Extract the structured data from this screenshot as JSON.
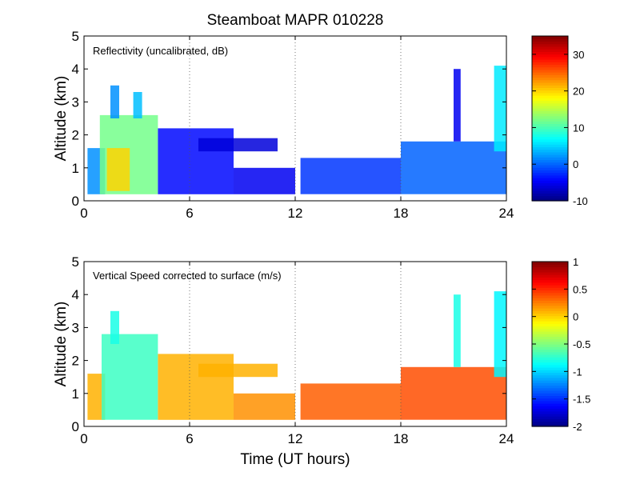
{
  "figure": {
    "title": "Steamboat MAPR 010228",
    "xlabel": "Time (UT hours)"
  },
  "chart_data": [
    {
      "type": "heatmap",
      "title": "Reflectivity (uncalibrated, dB)",
      "xlabel": "",
      "ylabel": "Altitude (km)",
      "xlim": [
        0,
        24
      ],
      "ylim": [
        0,
        5
      ],
      "xticks": [
        "0",
        "6",
        "12",
        "18",
        "24"
      ],
      "yticks": [
        "0",
        "1",
        "2",
        "3",
        "4",
        "5"
      ],
      "grid_x": [
        6,
        12,
        18
      ],
      "colorbar": {
        "range": [
          -10,
          35
        ],
        "ticks": [
          -10,
          0,
          10,
          20,
          30
        ],
        "tick_labels": [
          "-10",
          "0",
          "10",
          "20",
          "30"
        ],
        "colormap": "jet"
      },
      "regions": [
        {
          "t0": 0.2,
          "t1": 1.2,
          "h0": 0.2,
          "h1": 1.6,
          "value": 2
        },
        {
          "t0": 0.9,
          "t1": 4.2,
          "h0": 0.2,
          "h1": 2.6,
          "value": 12
        },
        {
          "t0": 1.3,
          "t1": 2.6,
          "h0": 0.3,
          "h1": 1.6,
          "value": 20
        },
        {
          "t0": 1.5,
          "t1": 2.0,
          "h0": 2.5,
          "h1": 3.5,
          "value": 2
        },
        {
          "t0": 2.8,
          "t1": 3.3,
          "h0": 2.5,
          "h1": 3.3,
          "value": 4
        },
        {
          "t0": 4.2,
          "t1": 8.5,
          "h0": 0.2,
          "h1": 2.2,
          "value": -4
        },
        {
          "t0": 6.5,
          "t1": 11.0,
          "h0": 1.5,
          "h1": 1.9,
          "value": -6
        },
        {
          "t0": 8.5,
          "t1": 12.0,
          "h0": 0.2,
          "h1": 1.0,
          "value": -5
        },
        {
          "t0": 12.3,
          "t1": 18.0,
          "h0": 0.2,
          "h1": 1.3,
          "value": -2
        },
        {
          "t0": 18.0,
          "t1": 24.0,
          "h0": 0.2,
          "h1": 1.8,
          "value": 0
        },
        {
          "t0": 21.0,
          "t1": 21.4,
          "h0": 1.8,
          "h1": 4.0,
          "value": -5
        },
        {
          "t0": 23.3,
          "t1": 24.0,
          "h0": 1.5,
          "h1": 4.1,
          "value": 6
        }
      ]
    },
    {
      "type": "heatmap",
      "title": "Vertical Speed corrected to surface (m/s)",
      "xlabel": "Time (UT hours)",
      "ylabel": "Altitude (km)",
      "xlim": [
        0,
        24
      ],
      "ylim": [
        0,
        5
      ],
      "xticks": [
        "0",
        "6",
        "12",
        "18",
        "24"
      ],
      "yticks": [
        "0",
        "1",
        "2",
        "3",
        "4",
        "5"
      ],
      "grid_x": [
        6,
        12,
        18
      ],
      "colorbar": {
        "range": [
          -2,
          1
        ],
        "ticks": [
          -2,
          -1.5,
          -1,
          -0.5,
          0,
          0.5,
          1
        ],
        "tick_labels": [
          "-2",
          "-1.5",
          "-1",
          "-0.5",
          "0",
          "0.5",
          "1"
        ],
        "colormap": "jet"
      },
      "regions": [
        {
          "t0": 0.2,
          "t1": 1.2,
          "h0": 0.2,
          "h1": 1.6,
          "value": 0.1
        },
        {
          "t0": 1.0,
          "t1": 4.2,
          "h0": 0.2,
          "h1": 2.8,
          "value": -0.7
        },
        {
          "t0": 1.5,
          "t1": 2.0,
          "h0": 2.5,
          "h1": 3.5,
          "value": -0.8
        },
        {
          "t0": 4.2,
          "t1": 8.5,
          "h0": 0.2,
          "h1": 2.2,
          "value": 0.1
        },
        {
          "t0": 6.5,
          "t1": 11.0,
          "h0": 1.5,
          "h1": 1.9,
          "value": 0.1
        },
        {
          "t0": 8.5,
          "t1": 12.0,
          "h0": 0.2,
          "h1": 1.0,
          "value": 0.2
        },
        {
          "t0": 12.3,
          "t1": 18.0,
          "h0": 0.2,
          "h1": 1.3,
          "value": 0.35
        },
        {
          "t0": 18.0,
          "t1": 24.0,
          "h0": 0.2,
          "h1": 1.8,
          "value": 0.4
        },
        {
          "t0": 21.0,
          "t1": 21.4,
          "h0": 1.8,
          "h1": 4.0,
          "value": -0.8
        },
        {
          "t0": 23.3,
          "t1": 24.0,
          "h0": 1.5,
          "h1": 4.1,
          "value": -0.9
        }
      ]
    }
  ]
}
